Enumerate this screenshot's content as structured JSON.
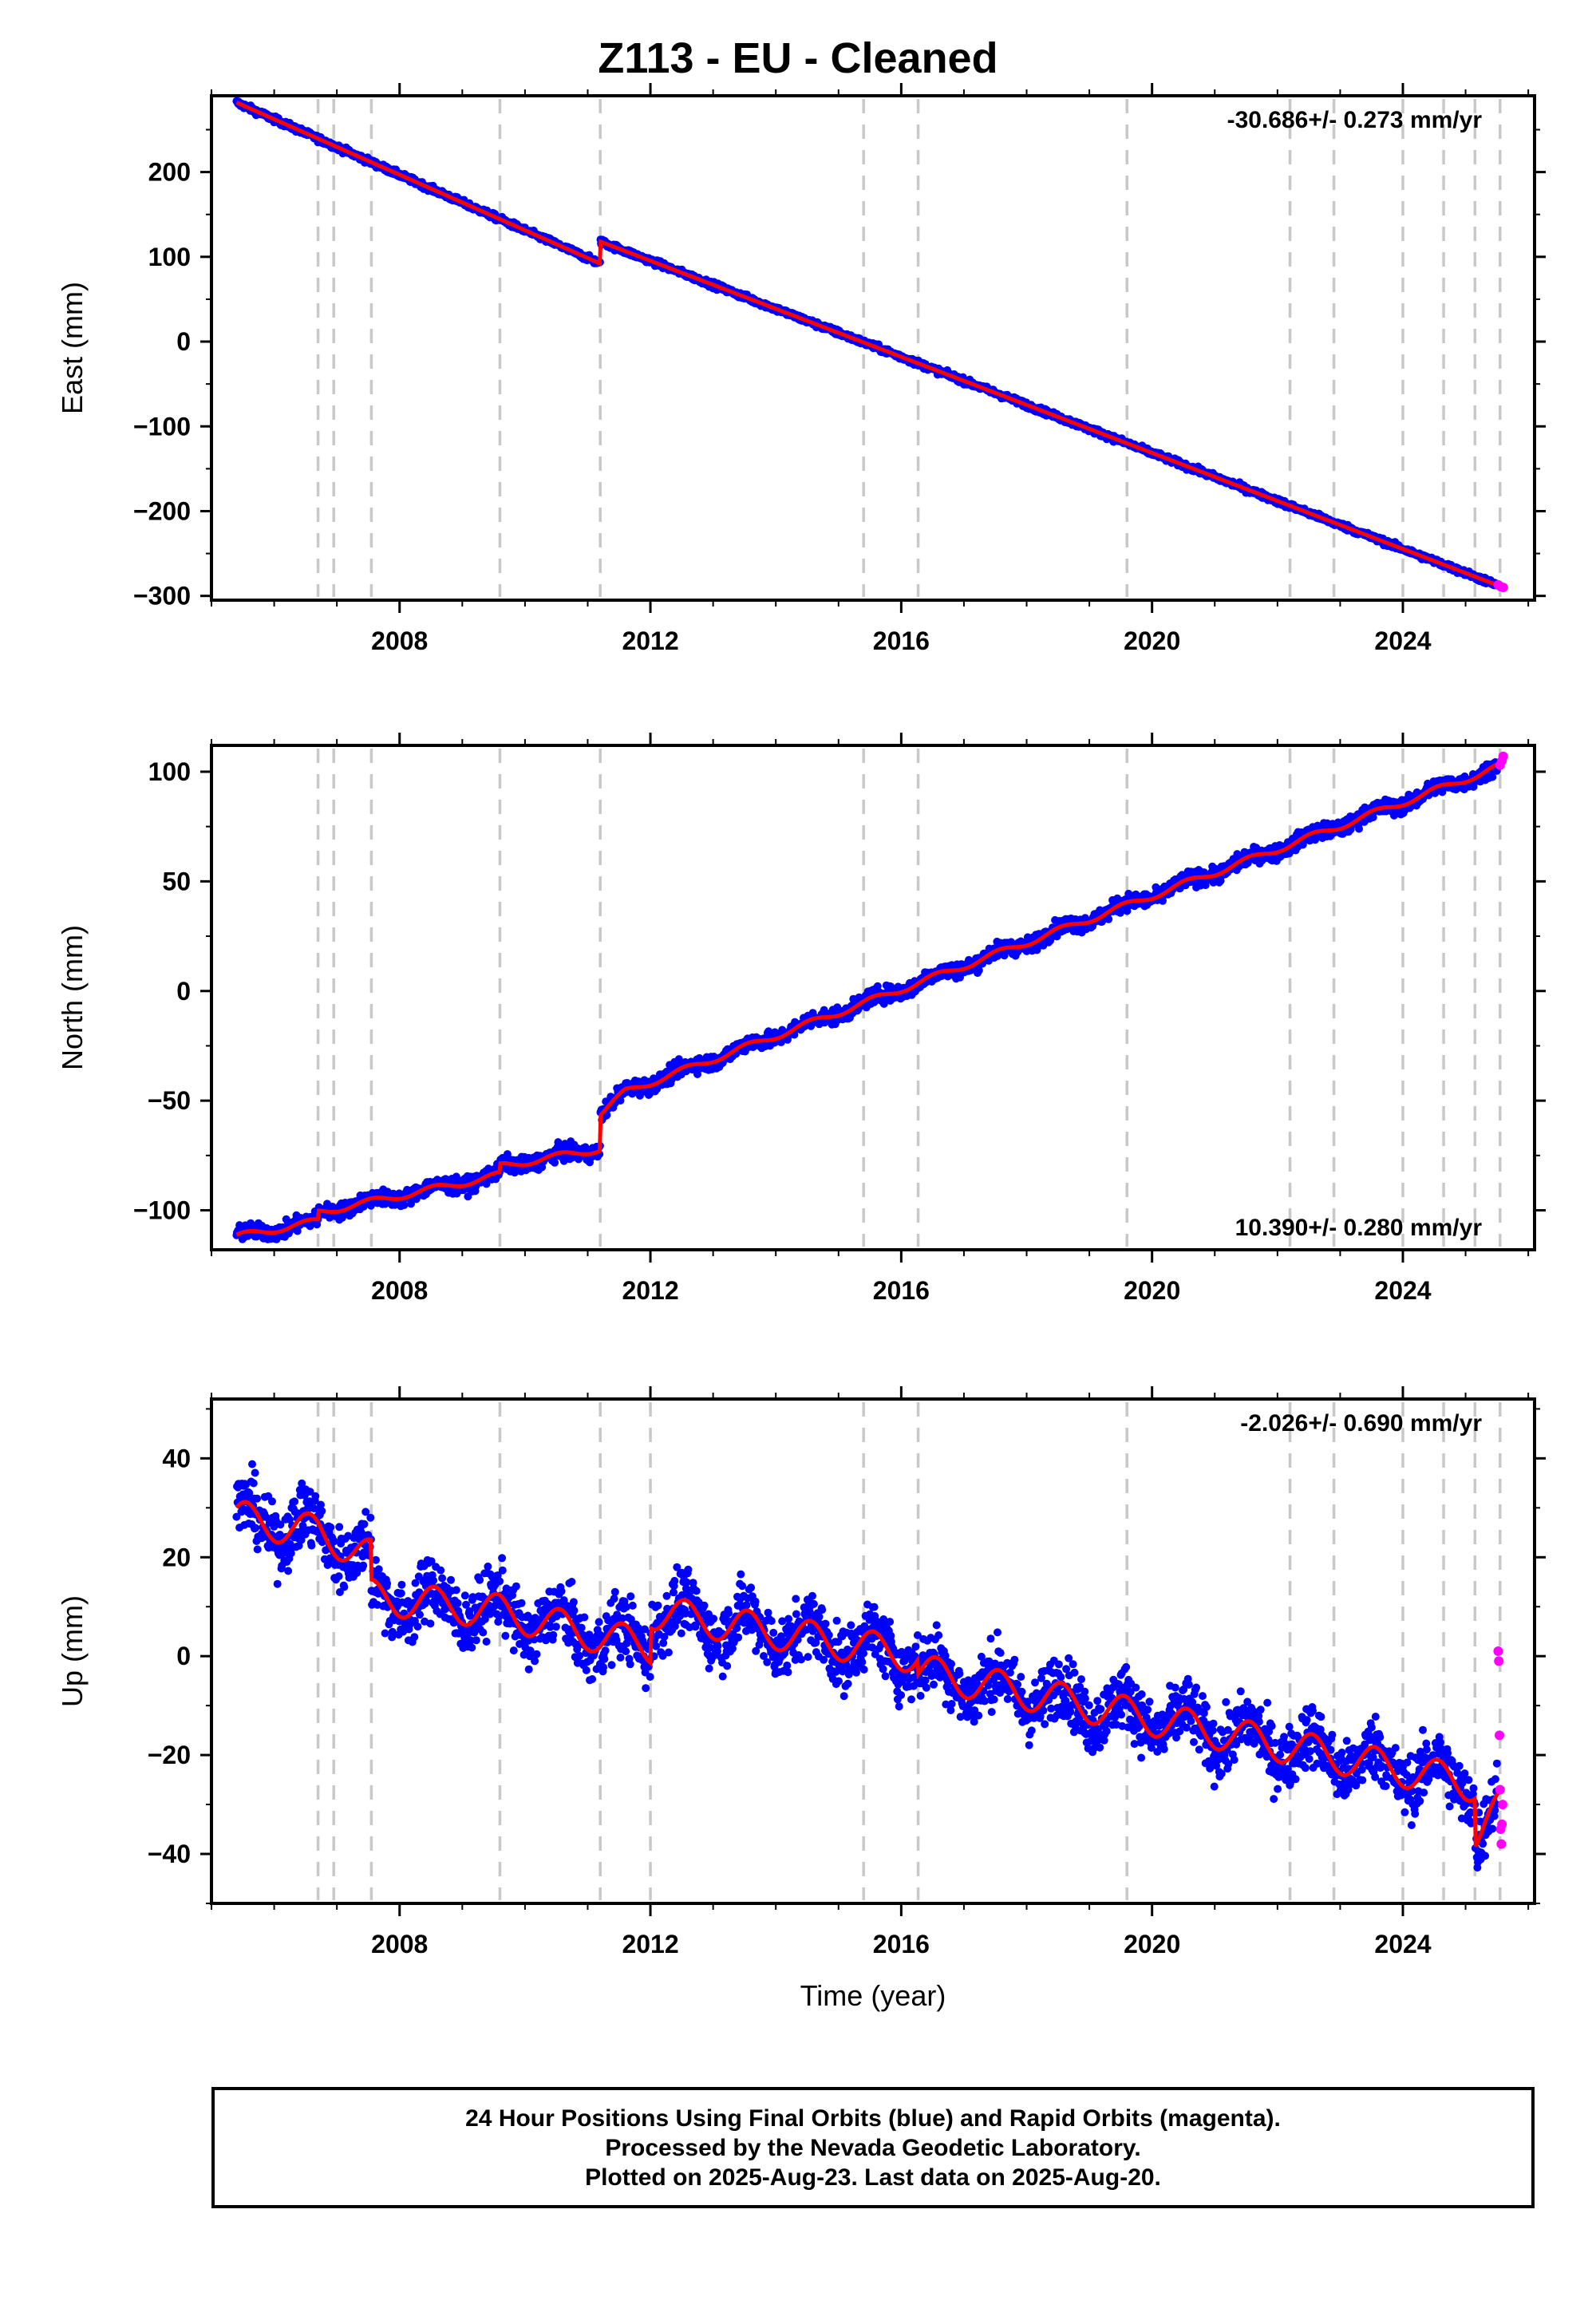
{
  "title": "Z113  - EU - Cleaned",
  "footer": {
    "line1": "24 Hour Positions Using Final Orbits (blue) and Rapid Orbits (magenta).",
    "line2": "Processed by the Nevada Geodetic Laboratory.",
    "line3": "Plotted on 2025-Aug-23. Last data on 2025-Aug-20."
  },
  "colors": {
    "final_orbits": "#0000ff",
    "rapid_orbits": "#ff00ff",
    "model": "#ff0000",
    "event_lines": "#c8c8c8"
  },
  "chart_data": [
    {
      "type": "scatter",
      "ylabel": "East (mm)",
      "xlabel": "",
      "rate_text": "-30.686+/- 0.273 mm/yr",
      "rate_position": "top-right",
      "xlim": [
        2005.0,
        2026.1
      ],
      "ylim": [
        -305,
        290
      ],
      "yticks": [
        -300,
        -200,
        -100,
        0,
        100,
        200
      ],
      "xticks": [
        2008,
        2012,
        2016,
        2020,
        2024
      ],
      "x_start": 2005.4,
      "x_end": 2025.6,
      "segments": [
        {
          "x0": 2005.4,
          "y0": 282,
          "x1": 2011.2,
          "y1": 92
        },
        {
          "x0": 2011.2,
          "y0": 118,
          "x1": 2025.6,
          "y1": -290
        }
      ],
      "noise_mm": 2.5,
      "seasonal_amp_mm": 0,
      "rapid_points": [
        [
          2025.52,
          -287
        ],
        [
          2025.56,
          -289
        ],
        [
          2025.6,
          -290
        ]
      ],
      "event_lines": [
        2006.7,
        2006.95,
        2007.55,
        2009.6,
        2011.2,
        2015.4,
        2016.27,
        2019.6,
        2022.2,
        2022.9,
        2024.0,
        2024.65,
        2025.15,
        2025.55
      ]
    },
    {
      "type": "scatter",
      "ylabel": "North (mm)",
      "xlabel": "",
      "rate_text": "10.390+/- 0.280 mm/yr",
      "rate_position": "bottom-right",
      "xlim": [
        2005.0,
        2026.1
      ],
      "ylim": [
        -118,
        112
      ],
      "yticks": [
        -100,
        -50,
        0,
        50,
        100
      ],
      "xticks": [
        2008,
        2012,
        2016,
        2020,
        2024
      ],
      "x_start": 2005.4,
      "x_end": 2025.6,
      "segments": [
        {
          "x0": 2005.4,
          "y0": -112,
          "x1": 2006.7,
          "y1": -105
        },
        {
          "x0": 2006.7,
          "y0": -101,
          "x1": 2009.6,
          "y1": -84
        },
        {
          "x0": 2009.6,
          "y0": -80,
          "x1": 2011.2,
          "y1": -72
        },
        {
          "x0": 2011.2,
          "y0": -56,
          "x1": 2011.6,
          "y1": -46
        },
        {
          "x0": 2011.6,
          "y0": -46,
          "x1": 2025.6,
          "y1": 103
        }
      ],
      "noise_mm": 2.5,
      "seasonal_amp_mm": 1.5,
      "rapid_points": [
        [
          2025.55,
          103
        ],
        [
          2025.58,
          105
        ],
        [
          2025.6,
          107
        ]
      ],
      "event_lines": [
        2006.7,
        2006.95,
        2007.55,
        2009.6,
        2011.2,
        2015.4,
        2016.27,
        2019.6,
        2022.2,
        2022.9,
        2024.0,
        2024.65,
        2025.15,
        2025.55
      ]
    },
    {
      "type": "scatter",
      "ylabel": "Up (mm)",
      "xlabel": "Time (year)",
      "rate_text": "-2.026+/- 0.690 mm/yr",
      "rate_position": "top-right",
      "xlim": [
        2005.0,
        2026.1
      ],
      "ylim": [
        -50,
        52
      ],
      "yticks": [
        -40,
        -20,
        0,
        20,
        40
      ],
      "xticks": [
        2008,
        2012,
        2016,
        2020,
        2024
      ],
      "x_start": 2005.4,
      "x_end": 2025.6,
      "segments": [
        {
          "x0": 2005.4,
          "y0": 28,
          "x1": 2006.7,
          "y1": 25
        },
        {
          "x0": 2006.7,
          "y0": 25,
          "x1": 2007.55,
          "y1": 20
        },
        {
          "x0": 2007.55,
          "y0": 12,
          "x1": 2009.6,
          "y1": 9
        },
        {
          "x0": 2009.6,
          "y0": 9,
          "x1": 2011.2,
          "y1": 4
        },
        {
          "x0": 2011.2,
          "y0": 4,
          "x1": 2012.0,
          "y1": 2
        },
        {
          "x0": 2012.0,
          "y0": 9,
          "x1": 2016.27,
          "y1": 0
        },
        {
          "x0": 2016.27,
          "y0": -3,
          "x1": 2025.15,
          "y1": -26
        },
        {
          "x0": 2025.15,
          "y0": -36,
          "x1": 2025.6,
          "y1": -30
        }
      ],
      "noise_mm": 4.5,
      "seasonal_amp_mm": 3.5,
      "rapid_points": [
        [
          2025.52,
          1
        ],
        [
          2025.53,
          -1
        ],
        [
          2025.54,
          -16
        ],
        [
          2025.55,
          -27
        ],
        [
          2025.56,
          -35
        ],
        [
          2025.57,
          -38
        ],
        [
          2025.58,
          -34
        ],
        [
          2025.59,
          -30
        ]
      ],
      "event_lines": [
        2006.7,
        2006.95,
        2007.55,
        2009.6,
        2011.2,
        2012.0,
        2015.4,
        2016.27,
        2019.6,
        2022.2,
        2022.9,
        2024.0,
        2024.65,
        2025.15,
        2025.55
      ]
    }
  ]
}
